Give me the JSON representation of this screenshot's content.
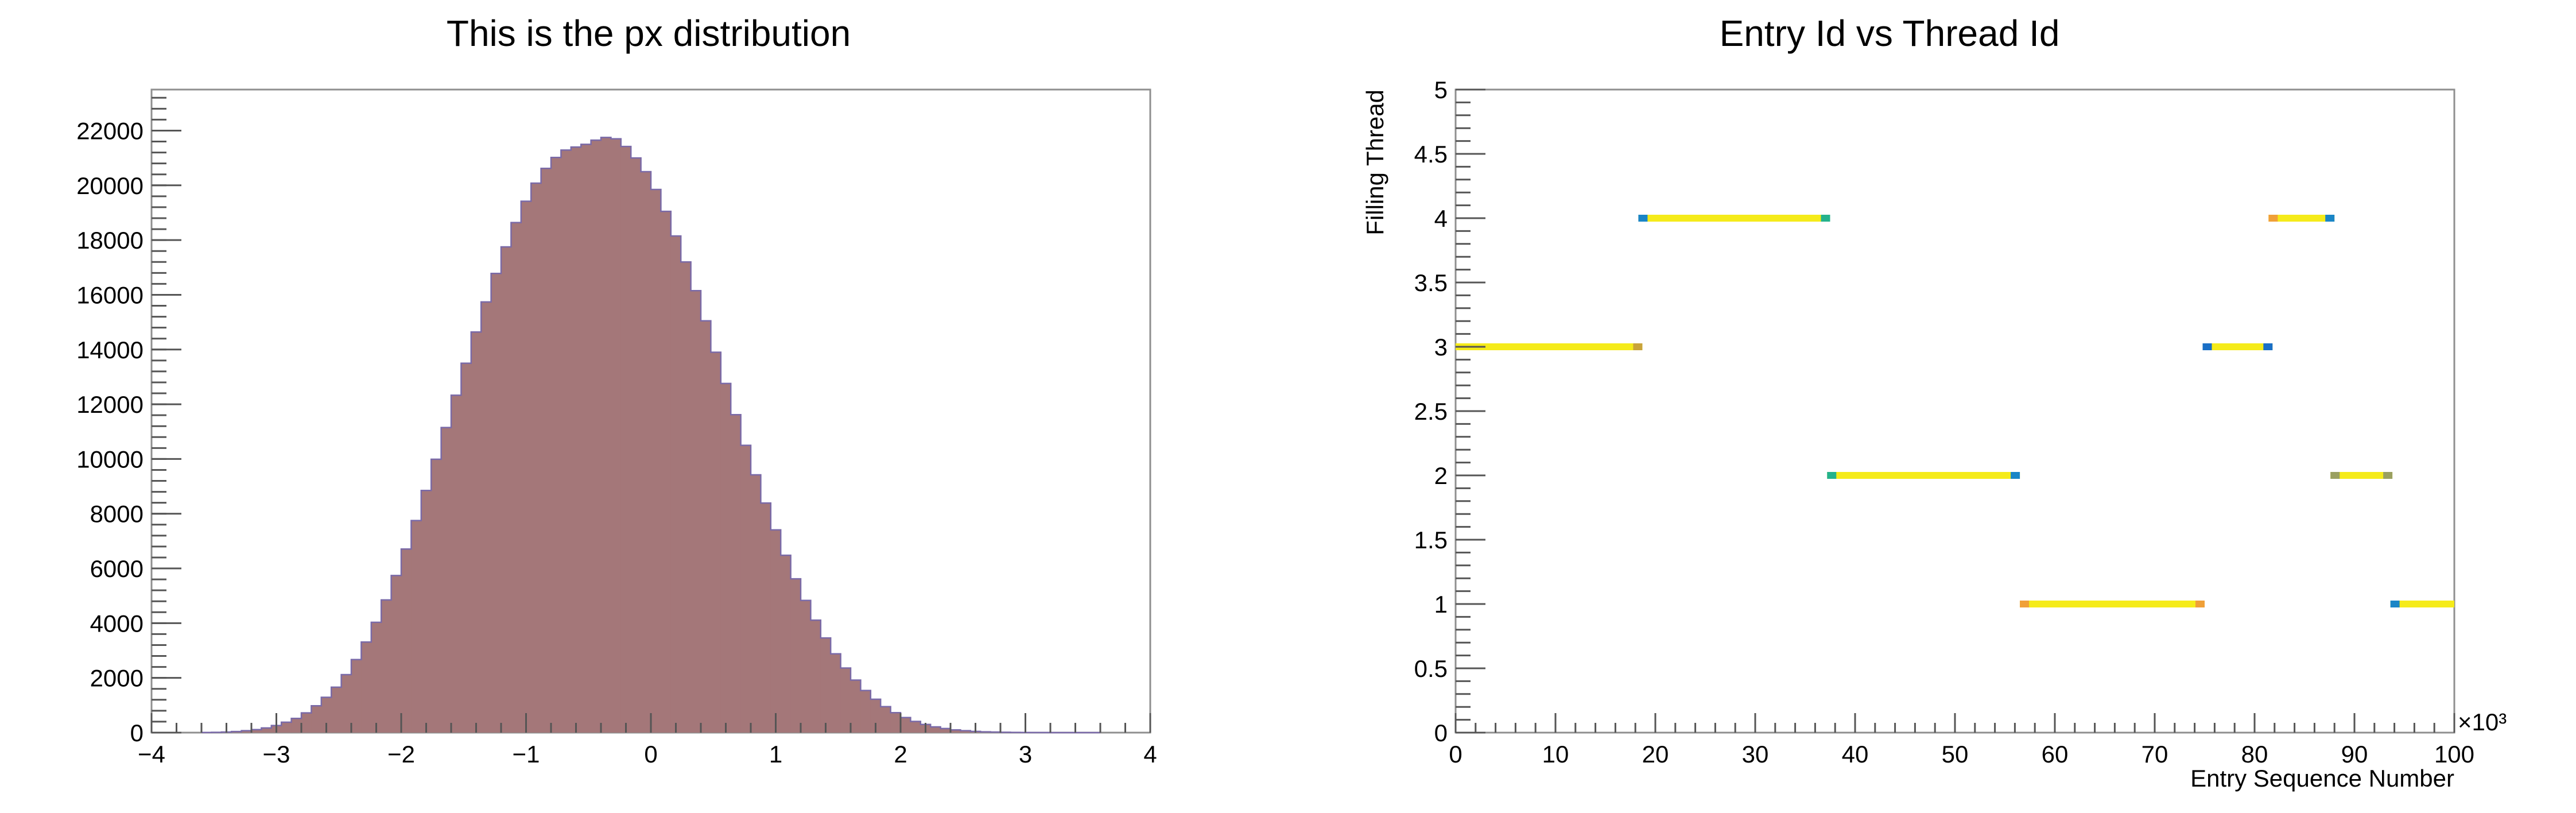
{
  "chart_data": [
    {
      "type": "bar",
      "title": "This is the px distribution",
      "xlabel": "",
      "ylabel": "",
      "xlim": [
        -4,
        4
      ],
      "ylim": [
        0,
        23500
      ],
      "x_ticks": [
        "−4",
        "−3",
        "−2",
        "−1",
        "0",
        "1",
        "2",
        "3",
        "4"
      ],
      "y_ticks": [
        "0",
        "2000",
        "4000",
        "6000",
        "8000",
        "10000",
        "12000",
        "14000",
        "16000",
        "18000",
        "20000",
        "22000"
      ],
      "bin_width": 0.08,
      "bin_start": -3.6,
      "values": [
        5,
        10,
        20,
        40,
        70,
        110,
        170,
        260,
        380,
        520,
        720,
        980,
        1290,
        1660,
        2120,
        2670,
        3310,
        4030,
        4850,
        5740,
        6710,
        7750,
        8850,
        9990,
        11150,
        12330,
        13500,
        14640,
        15740,
        16780,
        17750,
        18640,
        19420,
        20080,
        20620,
        21020,
        21290,
        21400,
        21500,
        21650,
        21750,
        21700,
        21420,
        21000,
        20500,
        19850,
        19050,
        18150,
        17200,
        16150,
        15050,
        13900,
        12760,
        11620,
        10500,
        9420,
        8390,
        7410,
        6480,
        5620,
        4830,
        4110,
        3460,
        2880,
        2360,
        1920,
        1540,
        1220,
        950,
        730,
        550,
        410,
        300,
        210,
        150,
        100,
        70,
        45,
        30,
        20,
        12,
        8,
        5,
        3,
        2,
        1,
        1,
        0,
        0,
        0
      ]
    },
    {
      "type": "scatter",
      "title": "Entry Id vs Thread Id",
      "xlabel": "Entry Sequence Number",
      "ylabel": "Filling Thread",
      "x_multiplier": "×10³",
      "xlim": [
        0,
        100
      ],
      "ylim": [
        0,
        5
      ],
      "x_ticks": [
        "0",
        "10",
        "20",
        "30",
        "40",
        "50",
        "60",
        "70",
        "80",
        "90",
        "100"
      ],
      "y_ticks": [
        "0",
        "0.5",
        "1",
        "1.5",
        "2",
        "2.5",
        "3",
        "3.5",
        "4",
        "4.5",
        "5"
      ],
      "segments": [
        {
          "thread": 3,
          "x_start": 0,
          "x_end": 18.7,
          "end_color": "#c9a43a",
          "start_color": "#f5eb1a"
        },
        {
          "thread": 4,
          "x_start": 18.3,
          "x_end": 37.5,
          "start_color": "#1a85c6",
          "end_color": "#24b28c"
        },
        {
          "thread": 2,
          "x_start": 37.2,
          "x_end": 56.5,
          "start_color": "#24b28c",
          "end_color": "#1a85c6"
        },
        {
          "thread": 1,
          "x_start": 56.5,
          "x_end": 75.0,
          "start_color": "#f0a038",
          "end_color": "#f0a038"
        },
        {
          "thread": 3,
          "x_start": 74.8,
          "x_end": 81.8,
          "start_color": "#1a6fc6",
          "end_color": "#1a6fc6"
        },
        {
          "thread": 4,
          "x_start": 81.4,
          "x_end": 88.0,
          "start_color": "#f0a038",
          "end_color": "#1a85c6"
        },
        {
          "thread": 2,
          "x_start": 87.6,
          "x_end": 93.8,
          "start_color": "#9aa060",
          "end_color": "#9aa060"
        },
        {
          "thread": 1,
          "x_start": 93.6,
          "x_end": 100,
          "start_color": "#1a85c6",
          "end_color": "#f5eb1a"
        }
      ],
      "line_color": "#f5eb1a"
    }
  ],
  "colors": {
    "hist_fill": "#a47779",
    "hist_line": "#7a6aa8"
  }
}
